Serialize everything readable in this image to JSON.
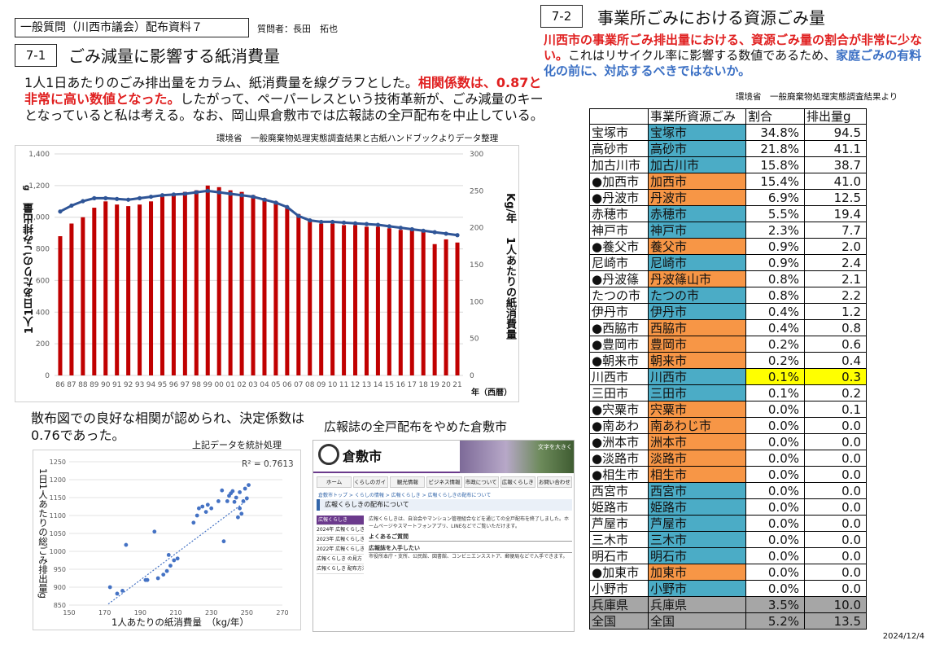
{
  "header": {
    "doc_label": "一般質問（川西市議会）配布資料７",
    "questioner": "質問者：長田　拓也",
    "date": "2024/12/4"
  },
  "section1": {
    "num": "7-1",
    "title": "ごみ減量に影響する紙消費量",
    "para_a": "1人1日あたりのごみ排出量をカラム、紙消費量を線グラフとした。",
    "para_red": "相関係数は、0.87と非常に高い数値となった。",
    "para_b": "したがって、ペーパーレスという技術革新が、ごみ減量のキーとなっていると私は考える。なお、岡山県倉敷市では広報誌の全戸配布を中止している。",
    "source": "環境省　一般廃棄物処理実態調査結果と古紙ハンドブックよりデータ整理"
  },
  "chart_data": [
    {
      "type": "bar",
      "categories": [
        "86",
        "87",
        "88",
        "89",
        "90",
        "91",
        "92",
        "93",
        "94",
        "95",
        "96",
        "97",
        "98",
        "99",
        "00",
        "01",
        "02",
        "03",
        "04",
        "05",
        "06",
        "07",
        "08",
        "09",
        "10",
        "11",
        "12",
        "13",
        "14",
        "15",
        "16",
        "17",
        "18",
        "19",
        "20",
        "21"
      ],
      "series": [
        {
          "values": [
            880,
            960,
            1000,
            1060,
            1100,
            1080,
            1070,
            1080,
            1100,
            1130,
            1150,
            1160,
            1170,
            1200,
            1190,
            1170,
            1160,
            1140,
            1120,
            1100,
            1060,
            1020,
            980,
            960,
            960,
            950,
            950,
            940,
            940,
            930,
            920,
            930,
            920,
            830,
            860,
            840
          ]
        },
        {
          "values": [
            222,
            230,
            236,
            240,
            240,
            239,
            238,
            240,
            242,
            244,
            245,
            246,
            248,
            250,
            248,
            246,
            244,
            242,
            238,
            234,
            228,
            216,
            210,
            208,
            208,
            207,
            206,
            205,
            204,
            202,
            200,
            198,
            196,
            194,
            192,
            190
          ]
        }
      ],
      "ylim": [
        0,
        1400
      ],
      "y2lim": [
        0,
        300
      ],
      "yticks": [
        "0",
        "200",
        "400",
        "600",
        "800",
        "1,000",
        "1,200",
        "1,400"
      ],
      "y2ticks": [
        "0",
        "50",
        "100",
        "150",
        "200",
        "250",
        "300"
      ],
      "ylabel": "1人1日あたりのごみ排出量",
      "yunit": "g",
      "y2label": "1人あたりの紙消費量",
      "y2unit": "Kg/年",
      "xunit": "年（西暦）",
      "grid": true
    },
    {
      "type": "scatter",
      "xlim": [
        150,
        270
      ],
      "ylim": [
        850,
        1250
      ],
      "xticks": [
        "150",
        "170",
        "190",
        "210",
        "230",
        "250",
        "270"
      ],
      "yticks": [
        "850",
        "900",
        "950",
        "1000",
        "1050",
        "1100",
        "1150",
        "1200",
        "1250"
      ],
      "xlabel": "1人あたりの紙消費量　（kg/年）",
      "ylabel": "1日1人あたりの総ごみ排出",
      "yunit": "量g",
      "r2_label": "R² = 0.7613",
      "trendline": {
        "x": [
          172,
          250
        ],
        "y": [
          853,
          1142
        ]
      },
      "points": [
        {
          "x": 173,
          "y": 900
        },
        {
          "x": 177,
          "y": 882
        },
        {
          "x": 180,
          "y": 890
        },
        {
          "x": 182,
          "y": 1018
        },
        {
          "x": 193,
          "y": 920
        },
        {
          "x": 194,
          "y": 920
        },
        {
          "x": 198,
          "y": 1055
        },
        {
          "x": 200,
          "y": 925
        },
        {
          "x": 203,
          "y": 935
        },
        {
          "x": 205,
          "y": 945
        },
        {
          "x": 206,
          "y": 990
        },
        {
          "x": 207,
          "y": 960
        },
        {
          "x": 209,
          "y": 975
        },
        {
          "x": 211,
          "y": 980
        },
        {
          "x": 220,
          "y": 1080
        },
        {
          "x": 222,
          "y": 1100
        },
        {
          "x": 223,
          "y": 1120
        },
        {
          "x": 225,
          "y": 1125
        },
        {
          "x": 227,
          "y": 1110
        },
        {
          "x": 228,
          "y": 1130
        },
        {
          "x": 230,
          "y": 1120
        },
        {
          "x": 234,
          "y": 1140
        },
        {
          "x": 236,
          "y": 1170
        },
        {
          "x": 237,
          "y": 1028
        },
        {
          "x": 239,
          "y": 1140
        },
        {
          "x": 240,
          "y": 1155
        },
        {
          "x": 241,
          "y": 1162
        },
        {
          "x": 242,
          "y": 1168
        },
        {
          "x": 243,
          "y": 1138
        },
        {
          "x": 244,
          "y": 1150
        },
        {
          "x": 246,
          "y": 1165
        },
        {
          "x": 246,
          "y": 1120
        },
        {
          "x": 247,
          "y": 1105
        },
        {
          "x": 248,
          "y": 1140
        },
        {
          "x": 249,
          "y": 1175
        },
        {
          "x": 250,
          "y": 1148
        },
        {
          "x": 251,
          "y": 1185
        },
        {
          "x": 245,
          "y": 1095
        }
      ]
    }
  ],
  "scatter_text": {
    "para": "散布図での良好な相関が認められ、決定係数は0.76であった。",
    "sub": "上記データを統計処理"
  },
  "website": {
    "title": "広報誌の全戸配布をやめた倉敷市",
    "logo_text": "倉敷市",
    "photo_text": "文字を大きく",
    "nav": [
      "ホーム",
      "くらしのガイド",
      "観光情報",
      "ビジネス情報",
      "市政について",
      "広報くらしき",
      "お問い合わせ"
    ],
    "breadcrumb": "倉敷市トップ > くらしの情報 > 広報くらしき > 広報くらしきの配布について",
    "page_title": "広報くらしきの配布について",
    "side_head": "広報くらしき",
    "side_items": [
      "2024年 広報くらしき",
      "2023年 広報くらしき",
      "2022年 広報くらしき",
      "広報くらしき の見方",
      "広報くらしき 配布方法"
    ],
    "body_text": "広報くらしきは、自治会やマンション管理組合などを通じての全戸配布を終了しました。ホームページやスマートフォンアプリ、LINEなどでご覧いただけます。",
    "box_head_1": "よくあるご質問",
    "box_head_2": "広報誌を入手したい",
    "box_text": "市役所本庁・支所、公民館、図書館、コンビニエンスストア、郵便局などで入手できます。"
  },
  "section2": {
    "num": "7-2",
    "title": "事業所ごみにおける資源ごみ量",
    "para_red": "川西市の事業所ごみ排出量における、資源ごみ量の割合が非常に少ない。",
    "para_b": "これはリサイクル率に影響する数値であるため、",
    "para_blue": "家庭ごみの有料化の前に、対応するべきではないか。",
    "source": "環境省　一般廃棄物処理実態調査結果より",
    "table": {
      "headers": [
        "",
        "事業所資源ごみ",
        "割合",
        "排出量g"
      ],
      "rows": [
        {
          "name": "宝塚市",
          "city": "宝塚市",
          "pct": "34.8%",
          "amt": "94.5",
          "color": "blue"
        },
        {
          "name": "高砂市",
          "city": "高砂市",
          "pct": "21.8%",
          "amt": "41.1",
          "color": "blue"
        },
        {
          "name": "加古川市",
          "city": "加古川市",
          "pct": "15.8%",
          "amt": "38.7",
          "color": "blue"
        },
        {
          "name": "●加西市",
          "city": "加西市",
          "pct": "15.4%",
          "amt": "41.0",
          "color": "orange"
        },
        {
          "name": "●丹波市",
          "city": "丹波市",
          "pct": "6.9%",
          "amt": "12.5",
          "color": "orange"
        },
        {
          "name": "赤穂市",
          "city": "赤穂市",
          "pct": "5.5%",
          "amt": "19.4",
          "color": "blue"
        },
        {
          "name": "神戸市",
          "city": "神戸市",
          "pct": "2.3%",
          "amt": "7.7",
          "color": "blue"
        },
        {
          "name": "●養父市",
          "city": "養父市",
          "pct": "0.9%",
          "amt": "2.0",
          "color": "orange"
        },
        {
          "name": "尼崎市",
          "city": "尼崎市",
          "pct": "0.9%",
          "amt": "2.4",
          "color": "blue"
        },
        {
          "name": "●丹波篠",
          "city": "丹波篠山市",
          "pct": "0.8%",
          "amt": "2.1",
          "color": "orange"
        },
        {
          "name": "たつの市",
          "city": "たつの市",
          "pct": "0.8%",
          "amt": "2.2",
          "color": "blue"
        },
        {
          "name": "伊丹市",
          "city": "伊丹市",
          "pct": "0.4%",
          "amt": "1.2",
          "color": "blue"
        },
        {
          "name": "●西脇市",
          "city": "西脇市",
          "pct": "0.4%",
          "amt": "0.8",
          "color": "orange"
        },
        {
          "name": "●豊岡市",
          "city": "豊岡市",
          "pct": "0.2%",
          "amt": "0.6",
          "color": "orange"
        },
        {
          "name": "●朝来市",
          "city": "朝来市",
          "pct": "0.2%",
          "amt": "0.4",
          "color": "orange"
        },
        {
          "name": "川西市",
          "city": "川西市",
          "pct": "0.1%",
          "amt": "0.3",
          "color": "blue",
          "highlight": true
        },
        {
          "name": "三田市",
          "city": "三田市",
          "pct": "0.1%",
          "amt": "0.2",
          "color": "blue"
        },
        {
          "name": "●宍粟市",
          "city": "宍粟市",
          "pct": "0.0%",
          "amt": "0.1",
          "color": "orange"
        },
        {
          "name": "●南あわ",
          "city": "南あわじ市",
          "pct": "0.0%",
          "amt": "0.0",
          "color": "orange"
        },
        {
          "name": "●洲本市",
          "city": "洲本市",
          "pct": "0.0%",
          "amt": "0.0",
          "color": "orange"
        },
        {
          "name": "●淡路市",
          "city": "淡路市",
          "pct": "0.0%",
          "amt": "0.0",
          "color": "orange"
        },
        {
          "name": "●相生市",
          "city": "相生市",
          "pct": "0.0%",
          "amt": "0.0",
          "color": "orange"
        },
        {
          "name": "西宮市",
          "city": "西宮市",
          "pct": "0.0%",
          "amt": "0.0",
          "color": "blue"
        },
        {
          "name": "姫路市",
          "city": "姫路市",
          "pct": "0.0%",
          "amt": "0.0",
          "color": "blue"
        },
        {
          "name": "芦屋市",
          "city": "芦屋市",
          "pct": "0.0%",
          "amt": "0.0",
          "color": "blue"
        },
        {
          "name": "三木市",
          "city": "三木市",
          "pct": "0.0%",
          "amt": "0.0",
          "color": "blue"
        },
        {
          "name": "明石市",
          "city": "明石市",
          "pct": "0.0%",
          "amt": "0.0",
          "color": "blue"
        },
        {
          "name": "●加東市",
          "city": "加東市",
          "pct": "0.0%",
          "amt": "0.0",
          "color": "orange"
        },
        {
          "name": "小野市",
          "city": "小野市",
          "pct": "0.0%",
          "amt": "0.0",
          "color": "blue"
        },
        {
          "name": "兵庫県",
          "city": "兵庫県",
          "pct": "3.5%",
          "amt": "10.0",
          "color": "gray"
        },
        {
          "name": "全国",
          "city": "全国",
          "pct": "5.2%",
          "amt": "13.5",
          "color": "gray"
        }
      ]
    }
  },
  "colors": {
    "bar": "#c00000",
    "line": "#2f5597",
    "red_text": "#e02020",
    "blue_text": "#3a6fc4",
    "cell_blue": "#4bacc6",
    "cell_orange": "#f79646",
    "cell_yellow": "#ffff00",
    "cell_gray": "#a6a6a6"
  }
}
